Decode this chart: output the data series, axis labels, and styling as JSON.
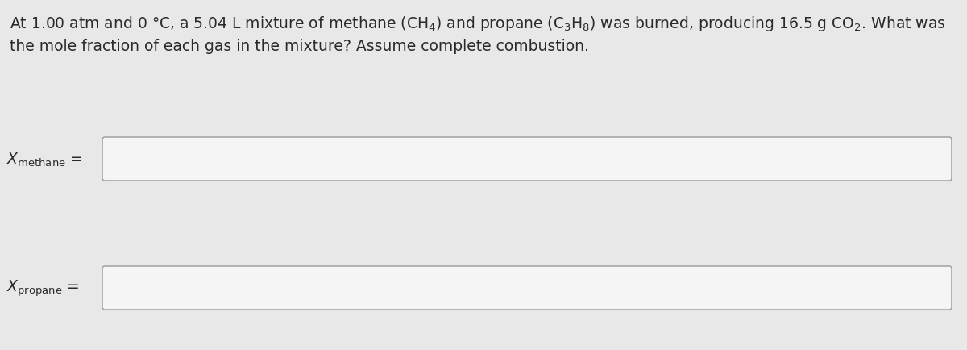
{
  "background_color": "#e8e8e8",
  "text_color": "#2a2a2a",
  "title_line1": "At 1.00 atm and 0 °C, a 5.04 L mixture of methane $(\\mathrm{CH_4})$ and propane $(\\mathrm{C_3H_8})$ was burned, producing 16.5 g CO$_2$. What was",
  "title_line2": "the mole fraction of each gas in the mixture? Assume complete combustion.",
  "label_methane": "$X_{\\mathrm{methane}}$",
  "label_propane": "$X_{\\mathrm{propane}}$",
  "box_color": "#f5f5f5",
  "box_edge_color": "#999999",
  "font_size_title": 13.5,
  "font_size_labels": 13.5,
  "fig_width": 12.0,
  "fig_height": 4.35,
  "dpi": 100
}
